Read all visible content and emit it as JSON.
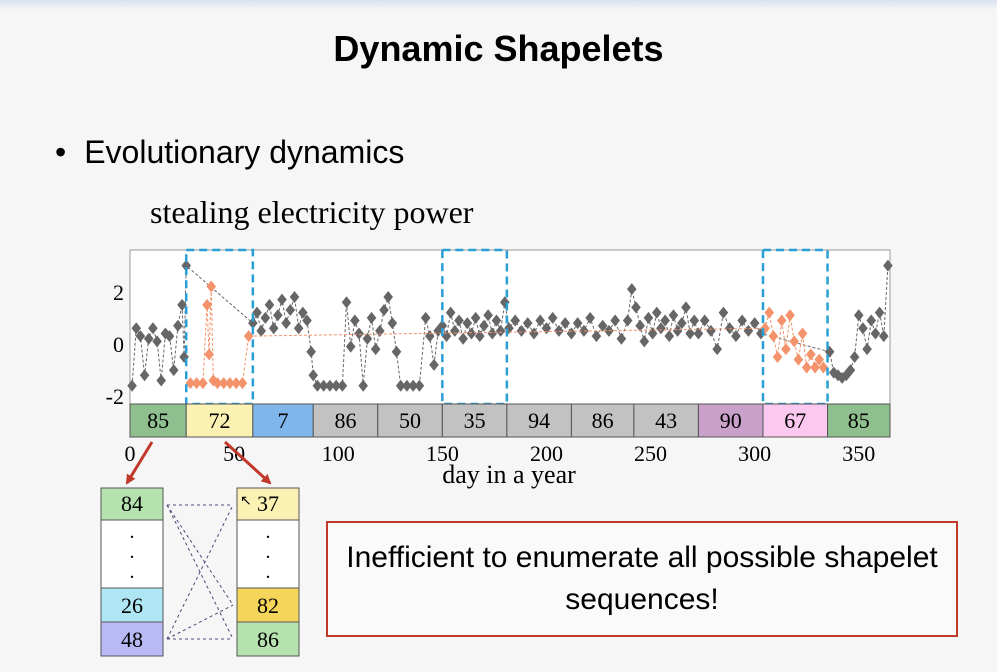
{
  "slide": {
    "title": "Dynamic Shapelets",
    "bullet_marker": "•",
    "bullet": "Evolutionary dynamics",
    "subtitle": "stealing electricity power",
    "callout": "Inefficient to enumerate all possible shapelet sequences!"
  },
  "chart_data": {
    "type": "scatter",
    "xlabel": "day in a year",
    "xticks": [
      "0",
      "50",
      "100",
      "150",
      "200",
      "250",
      "300",
      "350"
    ],
    "yticks": [
      "2",
      "0",
      "-2"
    ],
    "xlim": [
      0,
      365
    ],
    "ylim": [
      -2.3,
      3.6
    ],
    "segments": [
      {
        "label": "85",
        "start": 0,
        "end": 27,
        "color": "#8fbf8f"
      },
      {
        "label": "72",
        "start": 27,
        "end": 59,
        "color": "#fbf1b3"
      },
      {
        "label": "7",
        "start": 59,
        "end": 88,
        "color": "#7fb6ec"
      },
      {
        "label": "86",
        "start": 88,
        "end": 119,
        "color": "#c2c2c2"
      },
      {
        "label": "50",
        "start": 119,
        "end": 150,
        "color": "#c2c2c2"
      },
      {
        "label": "35",
        "start": 150,
        "end": 181,
        "color": "#c2c2c2"
      },
      {
        "label": "94",
        "start": 181,
        "end": 212,
        "color": "#c2c2c2"
      },
      {
        "label": "86",
        "start": 212,
        "end": 242,
        "color": "#c2c2c2"
      },
      {
        "label": "43",
        "start": 242,
        "end": 273,
        "color": "#c2c2c2"
      },
      {
        "label": "90",
        "start": 273,
        "end": 304,
        "color": "#c9a0c9"
      },
      {
        "label": "67",
        "start": 304,
        "end": 335,
        "color": "#fbc9f0"
      },
      {
        "label": "85",
        "start": 335,
        "end": 365,
        "color": "#8fbf8f"
      }
    ],
    "highlight_windows": [
      [
        27,
        59
      ],
      [
        150,
        181
      ],
      [
        304,
        335
      ]
    ],
    "shaded_range": [
      0,
      181
    ],
    "series": [
      {
        "color": "#666666",
        "points": [
          [
            1,
            -1.6
          ],
          [
            3,
            0.6
          ],
          [
            5,
            0.3
          ],
          [
            7,
            -1.2
          ],
          [
            9,
            0.2
          ],
          [
            11,
            0.6
          ],
          [
            13,
            0.1
          ],
          [
            15,
            -1.4
          ],
          [
            17,
            0.4
          ],
          [
            19,
            0.3
          ],
          [
            21,
            -1.0
          ],
          [
            23,
            0.7
          ],
          [
            25,
            1.5
          ],
          [
            26,
            -0.5
          ],
          [
            27,
            3.0
          ],
          [
            59,
            0.8
          ],
          [
            61,
            1.2
          ],
          [
            63,
            0.5
          ],
          [
            65,
            1.0
          ],
          [
            67,
            1.5
          ],
          [
            69,
            0.6
          ],
          [
            71,
            1.1
          ],
          [
            73,
            1.7
          ],
          [
            75,
            0.8
          ],
          [
            77,
            1.3
          ],
          [
            79,
            1.8
          ],
          [
            81,
            0.6
          ],
          [
            83,
            1.2
          ],
          [
            85,
            0.9
          ],
          [
            87,
            -0.3
          ],
          [
            88,
            -1.2
          ],
          [
            90,
            -1.6
          ],
          [
            93,
            -1.6
          ],
          [
            96,
            -1.6
          ],
          [
            99,
            -1.6
          ],
          [
            102,
            -1.6
          ],
          [
            104,
            1.6
          ],
          [
            106,
            -0.1
          ],
          [
            108,
            0.9
          ],
          [
            110,
            0.4
          ],
          [
            112,
            -1.6
          ],
          [
            114,
            0.2
          ],
          [
            116,
            1.0
          ],
          [
            118,
            -0.2
          ],
          [
            120,
            0.5
          ],
          [
            122,
            1.3
          ],
          [
            124,
            1.8
          ],
          [
            126,
            0.8
          ],
          [
            128,
            -0.3
          ],
          [
            130,
            -1.6
          ],
          [
            133,
            -1.6
          ],
          [
            136,
            -1.6
          ],
          [
            139,
            -1.6
          ],
          [
            142,
            1.0
          ],
          [
            144,
            0.3
          ],
          [
            146,
            -0.8
          ],
          [
            148,
            0.5
          ],
          [
            150,
            0.7
          ],
          [
            152,
            0.3
          ],
          [
            154,
            1.2
          ],
          [
            156,
            0.5
          ],
          [
            158,
            0.9
          ],
          [
            160,
            0.2
          ],
          [
            162,
            0.8
          ],
          [
            164,
            0.4
          ],
          [
            166,
            1.0
          ],
          [
            168,
            0.3
          ],
          [
            170,
            0.7
          ],
          [
            172,
            1.1
          ],
          [
            174,
            0.4
          ],
          [
            176,
            0.9
          ],
          [
            178,
            0.5
          ],
          [
            180,
            1.6
          ],
          [
            182,
            0.6
          ],
          [
            185,
            0.9
          ],
          [
            188,
            0.5
          ],
          [
            191,
            0.8
          ],
          [
            194,
            0.4
          ],
          [
            197,
            0.9
          ],
          [
            200,
            0.6
          ],
          [
            203,
            1.0
          ],
          [
            206,
            0.5
          ],
          [
            209,
            0.8
          ],
          [
            212,
            0.4
          ],
          [
            215,
            0.8
          ],
          [
            218,
            0.5
          ],
          [
            221,
            1.0
          ],
          [
            224,
            0.3
          ],
          [
            227,
            0.7
          ],
          [
            230,
            0.5
          ],
          [
            233,
            0.9
          ],
          [
            236,
            0.2
          ],
          [
            239,
            0.9
          ],
          [
            241,
            2.1
          ],
          [
            243,
            1.4
          ],
          [
            245,
            0.7
          ],
          [
            247,
            0.1
          ],
          [
            249,
            1.0
          ],
          [
            251,
            0.4
          ],
          [
            253,
            1.2
          ],
          [
            255,
            0.6
          ],
          [
            257,
            0.9
          ],
          [
            259,
            0.3
          ],
          [
            261,
            1.1
          ],
          [
            263,
            0.5
          ],
          [
            265,
            0.8
          ],
          [
            267,
            1.4
          ],
          [
            269,
            0.4
          ],
          [
            271,
            0.9
          ],
          [
            273,
            0.4
          ],
          [
            276,
            0.9
          ],
          [
            279,
            0.5
          ],
          [
            282,
            -0.2
          ],
          [
            285,
            1.2
          ],
          [
            288,
            0.6
          ],
          [
            291,
            0.3
          ],
          [
            294,
            0.9
          ],
          [
            297,
            0.5
          ],
          [
            300,
            0.8
          ],
          [
            303,
            0.4
          ],
          [
            336,
            -0.3
          ],
          [
            338,
            -1.1
          ],
          [
            340,
            -1.2
          ],
          [
            342,
            -1.3
          ],
          [
            344,
            -1.2
          ],
          [
            346,
            -1.0
          ],
          [
            348,
            -0.5
          ],
          [
            350,
            1.1
          ],
          [
            352,
            0.6
          ],
          [
            354,
            -0.2
          ],
          [
            356,
            0.9
          ],
          [
            358,
            0.4
          ],
          [
            360,
            1.2
          ],
          [
            362,
            0.3
          ],
          [
            364,
            3.0
          ]
        ]
      },
      {
        "color": "#f4936b",
        "points": [
          [
            29,
            -1.5
          ],
          [
            32,
            -1.5
          ],
          [
            35,
            -1.5
          ],
          [
            37,
            1.5
          ],
          [
            38,
            -0.4
          ],
          [
            39,
            2.2
          ],
          [
            40,
            -1.4
          ],
          [
            42,
            -1.5
          ],
          [
            45,
            -1.5
          ],
          [
            48,
            -1.5
          ],
          [
            51,
            -1.5
          ],
          [
            54,
            -1.5
          ],
          [
            57,
            0.3
          ],
          [
            305,
            0.6
          ],
          [
            307,
            1.2
          ],
          [
            309,
            0.3
          ],
          [
            311,
            -0.5
          ],
          [
            313,
            0.9
          ],
          [
            315,
            -0.2
          ],
          [
            317,
            1.1
          ],
          [
            319,
            0.1
          ],
          [
            321,
            -0.6
          ],
          [
            323,
            0.4
          ],
          [
            325,
            -0.9
          ],
          [
            327,
            -0.4
          ],
          [
            329,
            -0.9
          ],
          [
            331,
            -0.6
          ],
          [
            333,
            -0.9
          ]
        ]
      }
    ]
  },
  "left_box": [
    "84",
    ".",
    ".",
    ".",
    "26",
    "48"
  ],
  "right_box": [
    "37",
    ".",
    ".",
    ".",
    "82",
    "86"
  ]
}
